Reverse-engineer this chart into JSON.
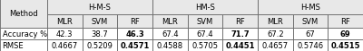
{
  "col_groups": [
    "H-M-S",
    "HM-S",
    "H-MS"
  ],
  "sub_cols": [
    "MLR",
    "SVM",
    "RF"
  ],
  "data": {
    "Accuracy %": {
      "H-M-S": [
        "42.3",
        "38.7",
        "46.3"
      ],
      "HM-S": [
        "67.4",
        "67.4",
        "71.7"
      ],
      "H-MS": [
        "67.2",
        "67",
        "69"
      ]
    },
    "RMSE": {
      "H-M-S": [
        "0.4667",
        "0.5209",
        "0.4571"
      ],
      "HM-S": [
        "0.4588",
        "0.5705",
        "0.4451"
      ],
      "H-MS": [
        "0.4657",
        "0.5746",
        "0.4515"
      ]
    }
  },
  "bold_col_idx": 2,
  "header_bg": "#e8e8e8",
  "cell_bg": "#ffffff",
  "border_color": "#666666",
  "text_color": "#000000",
  "fontsize": 6.0,
  "fig_width": 4.0,
  "fig_height": 0.58,
  "dpi": 100
}
